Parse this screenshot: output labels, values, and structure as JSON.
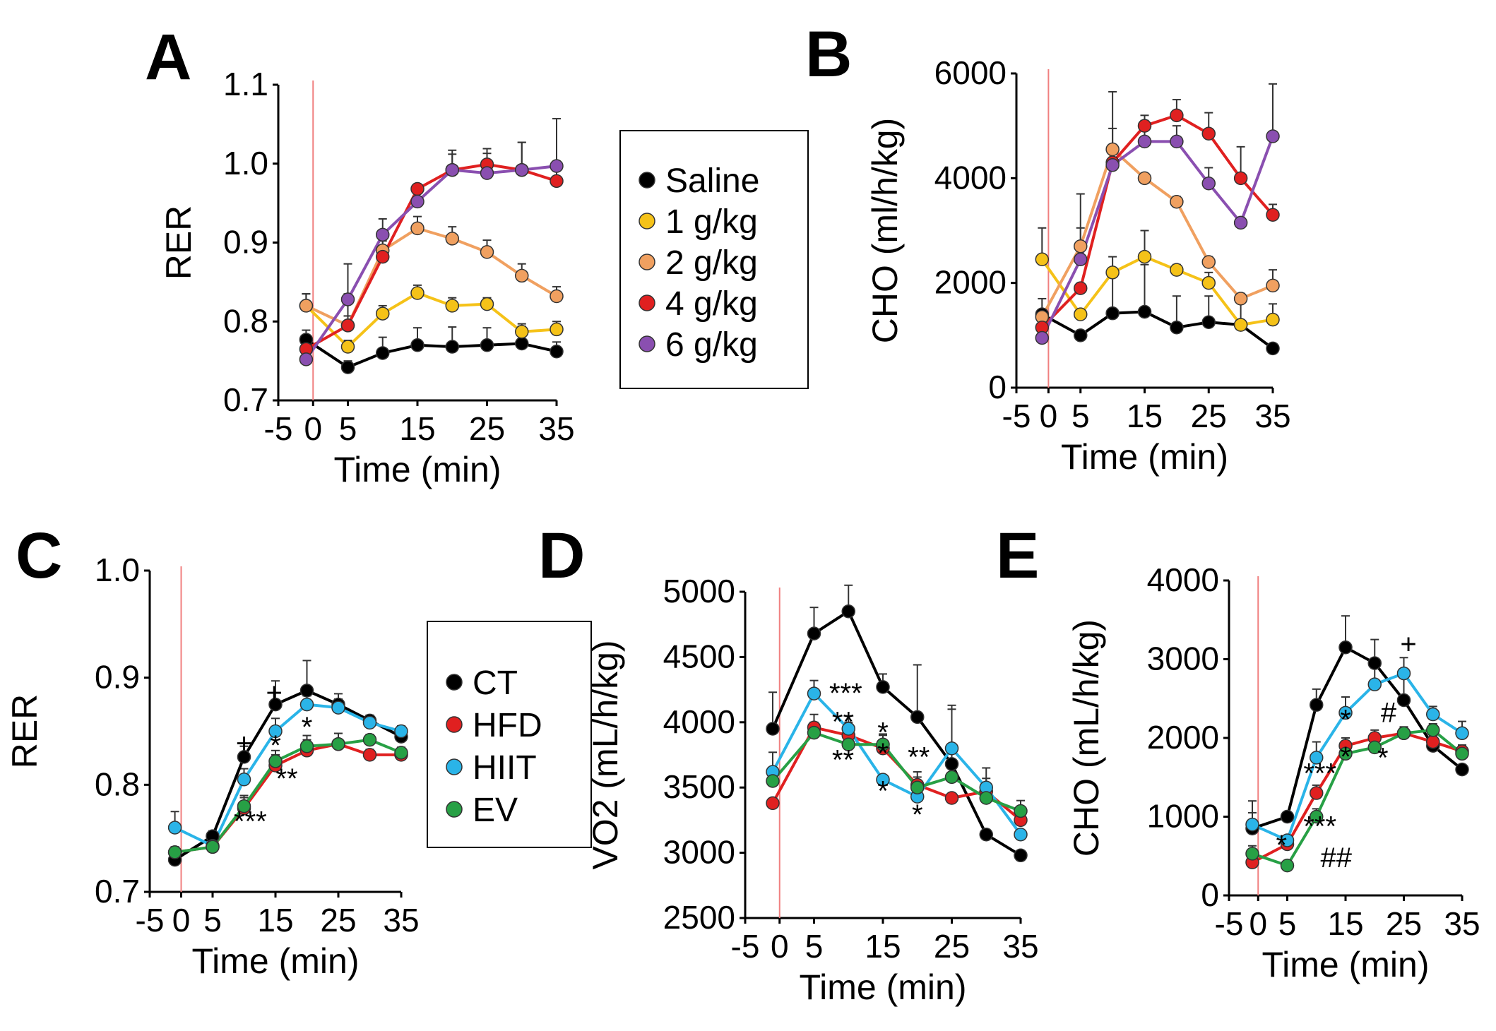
{
  "colors": {
    "saline": "#000000",
    "g1": "#f5c218",
    "g2": "#f0a060",
    "g4": "#e02020",
    "g6": "#8a4fb0",
    "CT": "#000000",
    "HFD": "#e02020",
    "HIIT": "#2ab4e8",
    "EV": "#27a045",
    "marker": "#f08080"
  },
  "legends": {
    "ab": [
      {
        "label": "Saline",
        "color": "#000000"
      },
      {
        "label": "1 g/kg",
        "color": "#f5c218"
      },
      {
        "label": "2 g/kg",
        "color": "#f0a060"
      },
      {
        "label": "4 g/kg",
        "color": "#e02020"
      },
      {
        "label": "6 g/kg",
        "color": "#8a4fb0"
      }
    ],
    "cde": [
      {
        "label": "CT",
        "color": "#000000"
      },
      {
        "label": "HFD",
        "color": "#e02020"
      },
      {
        "label": "HIIT",
        "color": "#2ab4e8"
      },
      {
        "label": "EV",
        "color": "#27a045"
      }
    ]
  },
  "chart_data": [
    {
      "panel": "A",
      "type": "line",
      "xlabel": "Time (min)",
      "ylabel": "RER",
      "xlim": [
        -5,
        35
      ],
      "ylim": [
        0.7,
        1.1
      ],
      "xticks": [
        -5,
        0,
        5,
        15,
        25,
        35
      ],
      "yticks": [
        0.7,
        0.8,
        0.9,
        1.0,
        1.1
      ],
      "ytick_labels": [
        "0.7",
        "0.8",
        "0.9",
        "1.0",
        "1.1"
      ],
      "marker_x": 0,
      "series": [
        {
          "name": "Saline",
          "color": "#000000",
          "x": [
            -1,
            5,
            10,
            15,
            20,
            25,
            30,
            35
          ],
          "y": [
            0.777,
            0.742,
            0.76,
            0.77,
            0.768,
            0.77,
            0.772,
            0.762
          ],
          "err": [
            0.012,
            0.008,
            0.02,
            0.022,
            0.025,
            0.022,
            0.022,
            0.012
          ]
        },
        {
          "name": "1 g/kg",
          "color": "#f5c218",
          "x": [
            -1,
            5,
            10,
            15,
            20,
            25,
            30,
            35
          ],
          "y": [
            0.82,
            0.768,
            0.81,
            0.836,
            0.82,
            0.822,
            0.787,
            0.79
          ],
          "err": [
            0.015,
            0.008,
            0.01,
            0.01,
            0.01,
            0.008,
            0.01,
            0.01
          ]
        },
        {
          "name": "2 g/kg",
          "color": "#f0a060",
          "x": [
            -1,
            5,
            10,
            15,
            20,
            25,
            30,
            35
          ],
          "y": [
            0.82,
            0.795,
            0.89,
            0.918,
            0.905,
            0.888,
            0.858,
            0.832
          ],
          "err": [
            0.015,
            0.012,
            0.015,
            0.015,
            0.015,
            0.015,
            0.015,
            0.012
          ]
        },
        {
          "name": "4 g/kg",
          "color": "#e02020",
          "x": [
            -1,
            5,
            10,
            15,
            20,
            25,
            30,
            35
          ],
          "y": [
            0.765,
            0.795,
            0.882,
            0.968,
            0.992,
            0.999,
            0.992,
            0.978
          ],
          "err": [
            0.012,
            0.04,
            0.02,
            0.005,
            0.02,
            0.02,
            0.035,
            0.025
          ]
        },
        {
          "name": "6 g/kg",
          "color": "#8a4fb0",
          "x": [
            -1,
            5,
            10,
            15,
            20,
            25,
            30,
            35
          ],
          "y": [
            0.752,
            0.828,
            0.91,
            0.952,
            0.992,
            0.988,
            0.992,
            0.997
          ],
          "err": [
            0.012,
            0.045,
            0.02,
            0.02,
            0.025,
            0.025,
            0.035,
            0.06
          ]
        }
      ]
    },
    {
      "panel": "B",
      "type": "line",
      "xlabel": "Time (min)",
      "ylabel": "CHO (ml/h/kg)",
      "xlim": [
        -5,
        35
      ],
      "ylim": [
        0,
        6000
      ],
      "xticks": [
        -5,
        0,
        5,
        15,
        25,
        35
      ],
      "yticks": [
        0,
        2000,
        4000,
        6000
      ],
      "ytick_labels": [
        "0",
        "2000",
        "4000",
        "6000"
      ],
      "marker_x": 0,
      "series": [
        {
          "name": "Saline",
          "color": "#000000",
          "x": [
            -1,
            5,
            10,
            15,
            20,
            25,
            30,
            35
          ],
          "y": [
            1400,
            1000,
            1420,
            1450,
            1150,
            1250,
            1200,
            750
          ],
          "err": [
            300,
            0,
            800,
            900,
            600,
            500,
            500,
            0
          ]
        },
        {
          "name": "1 g/kg",
          "color": "#f5c218",
          "x": [
            -1,
            5,
            10,
            15,
            20,
            25,
            30,
            35
          ],
          "y": [
            2450,
            1400,
            2200,
            2500,
            2250,
            2000,
            1200,
            1300
          ],
          "err": [
            600,
            0,
            300,
            500,
            100,
            200,
            0,
            300
          ]
        },
        {
          "name": "2 g/kg",
          "color": "#f0a060",
          "x": [
            -1,
            5,
            10,
            15,
            20,
            25,
            30,
            35
          ],
          "y": [
            1350,
            2700,
            4550,
            4000,
            3550,
            2400,
            1700,
            1950
          ],
          "err": [
            0,
            1000,
            1100,
            0,
            100,
            100,
            100,
            300
          ]
        },
        {
          "name": "4 g/kg",
          "color": "#e02020",
          "x": [
            -1,
            5,
            10,
            15,
            20,
            25,
            30,
            35
          ],
          "y": [
            1150,
            1900,
            4300,
            5000,
            5200,
            4850,
            4000,
            3300
          ],
          "err": [
            0,
            0,
            200,
            200,
            300,
            400,
            600,
            200
          ]
        },
        {
          "name": "6 g/kg",
          "color": "#8a4fb0",
          "x": [
            -1,
            5,
            10,
            15,
            20,
            25,
            30,
            35
          ],
          "y": [
            950,
            2450,
            4250,
            4700,
            4700,
            3900,
            3150,
            4800
          ],
          "err": [
            0,
            600,
            700,
            400,
            300,
            300,
            0,
            1000
          ]
        }
      ]
    },
    {
      "panel": "C",
      "type": "line",
      "xlabel": "Time (min)",
      "ylabel": "RER",
      "xlim": [
        -5,
        35
      ],
      "ylim": [
        0.7,
        1.0
      ],
      "xticks": [
        -5,
        0,
        5,
        15,
        25,
        35
      ],
      "yticks": [
        0.7,
        0.8,
        0.9,
        1.0
      ],
      "ytick_labels": [
        "0.7",
        "0.8",
        "0.9",
        "1.0"
      ],
      "marker_x": 0,
      "series": [
        {
          "name": "CT",
          "color": "#000000",
          "x": [
            -1,
            5,
            10,
            15,
            20,
            25,
            30,
            35
          ],
          "y": [
            0.73,
            0.752,
            0.826,
            0.875,
            0.888,
            0.875,
            0.86,
            0.845
          ],
          "err": [
            0.005,
            0.005,
            0.01,
            0.022,
            0.028,
            0.01,
            0.005,
            0.005
          ]
        },
        {
          "name": "HFD",
          "color": "#e02020",
          "x": [
            -1,
            5,
            10,
            15,
            20,
            25,
            30,
            35
          ],
          "y": [
            0.737,
            0.742,
            0.778,
            0.818,
            0.832,
            0.838,
            0.828,
            0.828
          ],
          "err": [
            0.005,
            0.005,
            0.01,
            0.01,
            0.01,
            0.01,
            0.005,
            0.005
          ]
        },
        {
          "name": "HIIT",
          "color": "#2ab4e8",
          "x": [
            -1,
            5,
            10,
            15,
            20,
            25,
            30,
            35
          ],
          "y": [
            0.76,
            0.743,
            0.805,
            0.85,
            0.875,
            0.872,
            0.858,
            0.85
          ],
          "err": [
            0.015,
            0.005,
            0.01,
            0.012,
            0.008,
            0.008,
            0.005,
            0.005
          ]
        },
        {
          "name": "EV",
          "color": "#27a045",
          "x": [
            -1,
            5,
            10,
            15,
            20,
            25,
            30,
            35
          ],
          "y": [
            0.737,
            0.742,
            0.78,
            0.822,
            0.836,
            0.838,
            0.842,
            0.83
          ],
          "err": [
            0.005,
            0.005,
            0.01,
            0.01,
            0.01,
            0.01,
            0.005,
            0.005
          ]
        }
      ],
      "annotations": [
        {
          "text": "+",
          "x": 10,
          "y": 0.83
        },
        {
          "text": "+",
          "x": 14.8,
          "y": 0.877
        },
        {
          "text": "*",
          "x": 15,
          "y": 0.828
        },
        {
          "text": "*",
          "x": 20,
          "y": 0.845
        },
        {
          "text": "**",
          "x": 16.8,
          "y": 0.797
        },
        {
          "text": "***",
          "x": 11,
          "y": 0.757
        }
      ]
    },
    {
      "panel": "D",
      "type": "line",
      "xlabel": "Time (min)",
      "ylabel": "VO2 (mL/h/kg)",
      "xlim": [
        -5,
        35
      ],
      "ylim": [
        2500,
        5000
      ],
      "xticks": [
        -5,
        0,
        5,
        15,
        25,
        35
      ],
      "yticks": [
        2500,
        3000,
        3500,
        4000,
        4500,
        5000
      ],
      "ytick_labels": [
        "2500",
        "3000",
        "3500",
        "4000",
        "4500",
        "5000"
      ],
      "marker_x": 0,
      "series": [
        {
          "name": "CT",
          "color": "#000000",
          "x": [
            -1,
            5,
            10,
            15,
            20,
            25,
            30,
            35
          ],
          "y": [
            3950,
            4680,
            4850,
            4270,
            4040,
            3680,
            3140,
            2980
          ],
          "err": [
            280,
            200,
            200,
            100,
            400,
            450,
            0,
            0
          ]
        },
        {
          "name": "HFD",
          "color": "#e02020",
          "x": [
            -1,
            5,
            10,
            15,
            20,
            25,
            30,
            35
          ],
          "y": [
            3380,
            3960,
            3900,
            3800,
            3520,
            3420,
            3470,
            3250
          ],
          "err": [
            0,
            100,
            100,
            100,
            100,
            0,
            100,
            100
          ]
        },
        {
          "name": "HIIT",
          "color": "#2ab4e8",
          "x": [
            -1,
            5,
            10,
            15,
            20,
            25,
            30,
            35
          ],
          "y": [
            3620,
            4220,
            3950,
            3560,
            3430,
            3800,
            3500,
            3140
          ],
          "err": [
            150,
            100,
            100,
            0,
            100,
            300,
            150,
            0
          ]
        },
        {
          "name": "EV",
          "color": "#27a045",
          "x": [
            -1,
            5,
            10,
            15,
            20,
            25,
            30,
            35
          ],
          "y": [
            3550,
            3920,
            3830,
            3830,
            3500,
            3580,
            3420,
            3320
          ],
          "err": [
            0,
            80,
            80,
            80,
            80,
            0,
            100,
            80
          ]
        }
      ],
      "annotations": [
        {
          "text": "***",
          "x": 9.6,
          "y": 4150
        },
        {
          "text": "**",
          "x": 9.2,
          "y": 3930
        },
        {
          "text": "**",
          "x": 9.2,
          "y": 3640
        },
        {
          "text": "*",
          "x": 15,
          "y": 3850
        },
        {
          "text": "*",
          "x": 15,
          "y": 3690
        },
        {
          "text": "*",
          "x": 15,
          "y": 3400
        },
        {
          "text": "**",
          "x": 20.2,
          "y": 3660
        },
        {
          "text": "*",
          "x": 20,
          "y": 3220
        }
      ]
    },
    {
      "panel": "E",
      "type": "line",
      "xlabel": "Time (min)",
      "ylabel": "CHO (mL/h/kg)",
      "xlim": [
        -5,
        35
      ],
      "ylim": [
        0,
        4000
      ],
      "xticks": [
        -5,
        0,
        5,
        15,
        25,
        35
      ],
      "yticks": [
        0,
        1000,
        2000,
        3000,
        4000
      ],
      "ytick_labels": [
        "0",
        "1000",
        "2000",
        "3000",
        "4000"
      ],
      "marker_x": 0,
      "series": [
        {
          "name": "CT",
          "color": "#000000",
          "x": [
            -1,
            5,
            10,
            15,
            20,
            25,
            30,
            35
          ],
          "y": [
            850,
            1000,
            2420,
            3150,
            2950,
            2480,
            1900,
            1600
          ],
          "err": [
            200,
            0,
            200,
            400,
            300,
            300,
            0,
            0
          ]
        },
        {
          "name": "HFD",
          "color": "#e02020",
          "x": [
            -1,
            5,
            10,
            15,
            20,
            25,
            30,
            35
          ],
          "y": [
            420,
            650,
            1300,
            1900,
            2000,
            2060,
            1950,
            1830
          ],
          "err": [
            0,
            0,
            100,
            100,
            100,
            80,
            80,
            80
          ]
        },
        {
          "name": "HIIT",
          "color": "#2ab4e8",
          "x": [
            -1,
            5,
            10,
            15,
            20,
            25,
            30,
            35
          ],
          "y": [
            900,
            700,
            1750,
            2320,
            2680,
            2820,
            2300,
            2060
          ],
          "err": [
            300,
            0,
            200,
            200,
            300,
            200,
            100,
            150
          ]
        },
        {
          "name": "EV",
          "color": "#27a045",
          "x": [
            -1,
            5,
            10,
            15,
            20,
            25,
            30,
            35
          ],
          "y": [
            530,
            380,
            1000,
            1800,
            1880,
            2060,
            2100,
            1800
          ],
          "err": [
            100,
            50,
            100,
            100,
            100,
            80,
            80,
            80
          ]
        }
      ],
      "annotations": [
        {
          "text": "+",
          "x": 25.8,
          "y": 3070
        },
        {
          "text": "*",
          "x": 15,
          "y": 2110
        },
        {
          "text": "*",
          "x": 15,
          "y": 1640
        },
        {
          "text": "#",
          "x": 22.4,
          "y": 2200
        },
        {
          "text": "*",
          "x": 21.4,
          "y": 1630
        },
        {
          "text": "*",
          "x": 4,
          "y": 520
        },
        {
          "text": "***",
          "x": 10.6,
          "y": 1430
        },
        {
          "text": "***",
          "x": 10.6,
          "y": 760
        },
        {
          "text": "##",
          "x": 13.4,
          "y": 360
        }
      ]
    }
  ]
}
